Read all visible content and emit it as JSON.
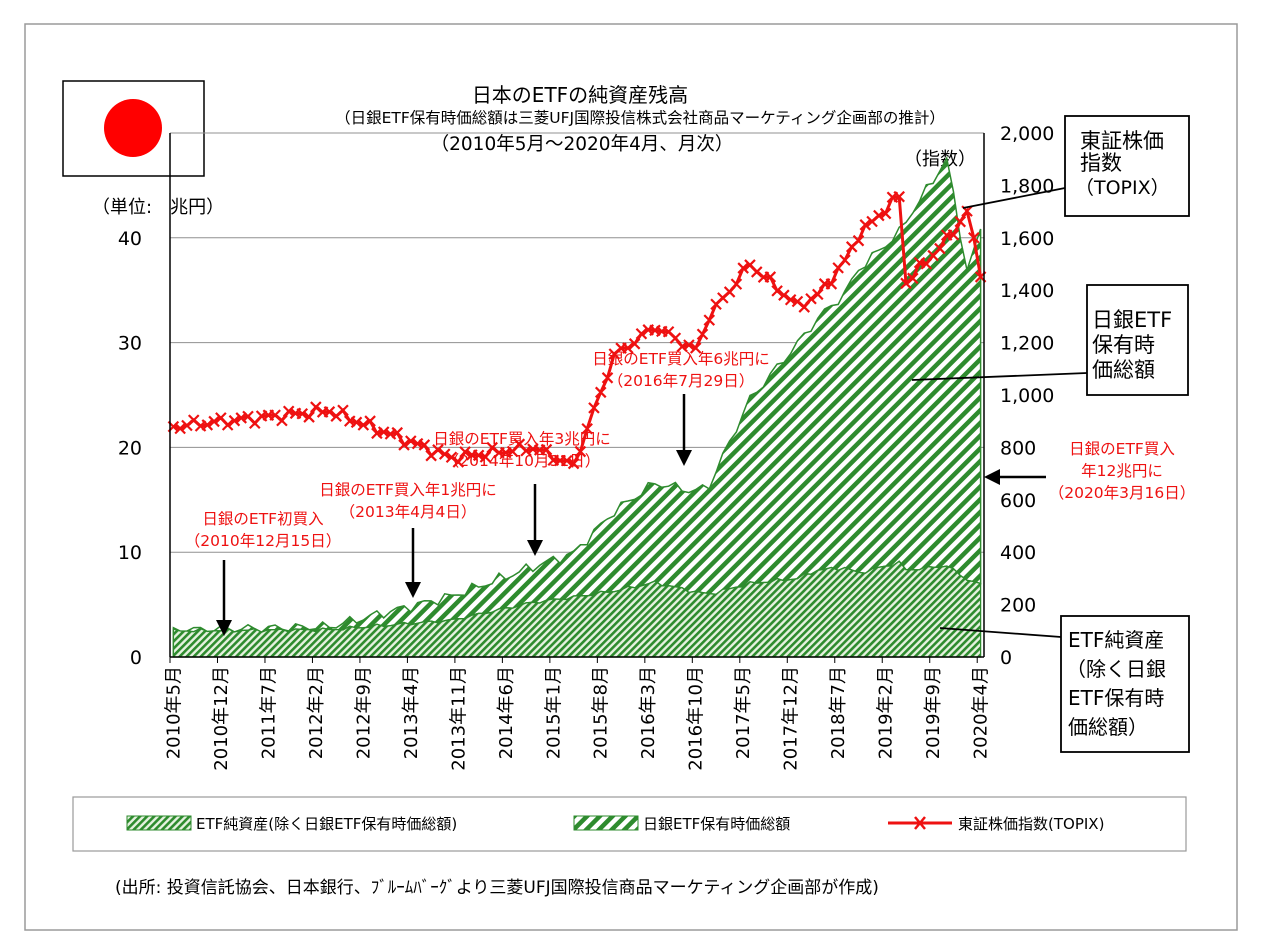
{
  "chart_data": {
    "type": "area",
    "title": "日本のETFの純資産残高",
    "subtitle": "（日銀ETF保有時価総額は三菱UFJ国際投信株式会社商品マーケティング企画部の推計）",
    "period": "（2010年5月～2020年4月、月次）",
    "y_left_label": "（単位:　兆円）",
    "y_right_label": "（指数）",
    "y_left_ticks": [
      "0",
      "10",
      "20",
      "30",
      "40"
    ],
    "y_right_ticks": [
      "0",
      "200",
      "400",
      "600",
      "800",
      "1,000",
      "1,200",
      "1,400",
      "1,600",
      "1,800",
      "2,000"
    ],
    "ylim_left": [
      0,
      50
    ],
    "ylim_right": [
      0,
      2000
    ],
    "x_tick_labels": [
      "2010年5月",
      "2010年12月",
      "2011年7月",
      "2012年2月",
      "2012年9月",
      "2013年4月",
      "2013年11月",
      "2014年6月",
      "2015年1月",
      "2015年8月",
      "2016年3月",
      "2016年10月",
      "2017年5月",
      "2017年12月",
      "2018年7月",
      "2019年2月",
      "2019年9月",
      "2020年4月"
    ],
    "x_anchor_months": [
      0,
      23,
      41,
      53,
      59,
      65,
      71,
      77,
      79,
      85,
      92,
      95,
      99,
      101,
      107,
      108,
      114,
      117,
      119
    ],
    "series": [
      {
        "name": "ETF純資産(除く日銀ETF保有時価総額)",
        "unit": "兆円",
        "anchor_values": [
          2.5,
          2.6,
          3.5,
          5.2,
          5.7,
          6.3,
          7.1,
          6.2,
          6.0,
          7.0,
          7.5,
          8.3,
          8.5,
          8.0,
          9.0,
          8.3,
          8.7,
          7.4,
          6.9
        ]
      },
      {
        "name": "日銀ETF保有時価総額",
        "unit": "兆円",
        "anchor_values": [
          0.0,
          0.3,
          2.3,
          3.4,
          4.2,
          7.6,
          9.5,
          9.6,
          10.4,
          17.6,
          22.4,
          24.0,
          26.2,
          29.0,
          31.5,
          33.3,
          38.8,
          29.5,
          33.7
        ]
      },
      {
        "name": "東証株価指数(TOPIX)",
        "unit": "指数",
        "anchor_values": [
          880,
          940,
          760,
          800,
          730,
          1150,
          1260,
          1170,
          1300,
          1500,
          1340,
          1380,
          1510,
          1610,
          1760,
          1430,
          1590,
          1700,
          1470
        ]
      }
    ],
    "annotations": [
      {
        "lines": [
          "日銀のETF初買入",
          "（2010年12月15日）"
        ],
        "month": 7
      },
      {
        "lines": [
          "日銀のETF買入年1兆円に",
          "（2013年4月4日）"
        ],
        "month": 35
      },
      {
        "lines": [
          "日銀のETF買入年3兆円に",
          "（2014年10月31日）"
        ],
        "month": 53
      },
      {
        "lines": [
          "日銀のETF買入年6兆円に",
          "（2016年7月29日）"
        ],
        "month": 74
      },
      {
        "lines": [
          "日銀のETF買入",
          "年12兆円に",
          "（2020年3月16日）"
        ],
        "month": 118
      }
    ],
    "callouts": {
      "topix": [
        "東証株価",
        "指数",
        "（TOPIX）"
      ],
      "boj": [
        "日銀ETF",
        "保有時",
        "価総額"
      ],
      "etf": [
        "ETF純資産",
        "（除く日銀",
        "ETF保有時",
        "価総額）"
      ]
    },
    "legend": [
      "ETF純資産(除く日銀ETF保有時価総額)",
      "日銀ETF保有時価総額",
      "東証株価指数(TOPIX)"
    ],
    "legend_position": "bottom",
    "grid": true,
    "source": "(出所: 投資信託協会、日本銀行、ﾌﾞﾙｰﾑﾊﾞｰｸﾞより三菱UFJ国際投信商品マーケティング企画部が作成)",
    "colors": {
      "area_green": "#2e8b2e",
      "area_light": "#e6f2e0",
      "topix_line": "#ee1111",
      "annotation_red": "#ee1111",
      "flag_red": "#ff0000"
    }
  }
}
